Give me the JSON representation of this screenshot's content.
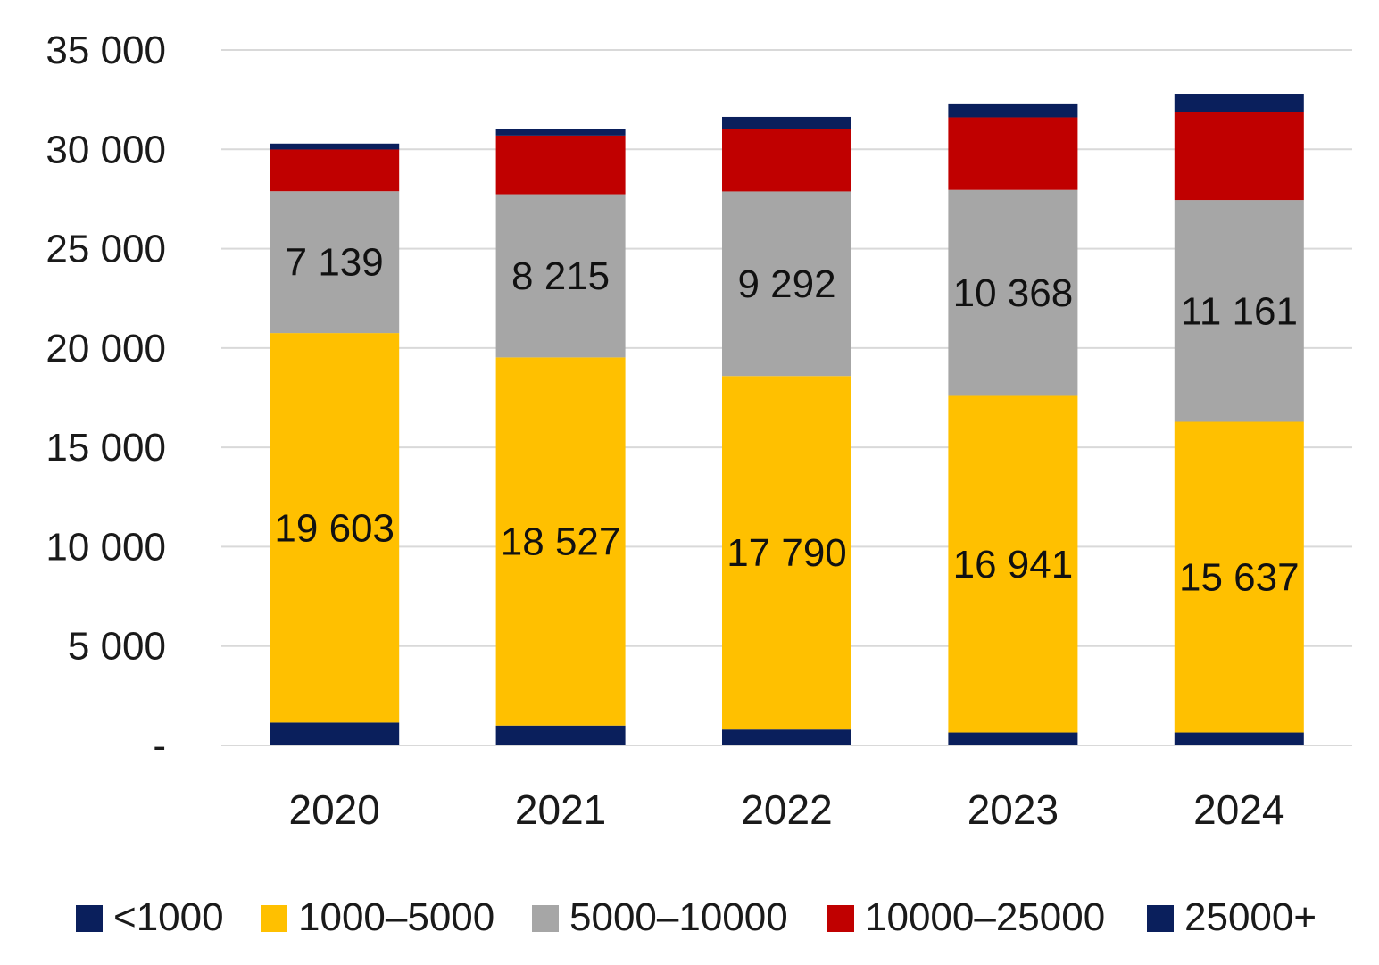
{
  "chart_data": {
    "type": "bar",
    "stacked": true,
    "title": "",
    "xlabel": "",
    "ylabel": "",
    "ylim": [
      0,
      35000
    ],
    "yticks": [
      0,
      5000,
      10000,
      15000,
      20000,
      25000,
      30000,
      35000
    ],
    "ytick_labels": [
      "-",
      "5 000",
      "10 000",
      "15 000",
      "20 000",
      "25 000",
      "30 000",
      "35 000"
    ],
    "grid": true,
    "legend_position": "bottom",
    "categories": [
      "2020",
      "2021",
      "2022",
      "2023",
      "2024"
    ],
    "series": [
      {
        "name": "<1000",
        "color": "#0a1f5c",
        "values": [
          1150,
          1000,
          800,
          650,
          650
        ]
      },
      {
        "name": "1000–5000",
        "color": "#ffc000",
        "values": [
          19603,
          18527,
          17790,
          16941,
          15637
        ],
        "labels": [
          "19 603",
          "18 527",
          "17 790",
          "16 941",
          "15 637"
        ]
      },
      {
        "name": "5000–10000",
        "color": "#a6a6a6",
        "values": [
          7139,
          8215,
          9292,
          10368,
          11161
        ],
        "labels": [
          "7 139",
          "8 215",
          "9 292",
          "10 368",
          "11 161"
        ]
      },
      {
        "name": "10000–25000",
        "color": "#c00000",
        "values": [
          2100,
          2950,
          3150,
          3650,
          4450
        ]
      },
      {
        "name": "25000+",
        "color": "#0a1f5c",
        "values": [
          300,
          350,
          600,
          700,
          900
        ]
      }
    ]
  }
}
